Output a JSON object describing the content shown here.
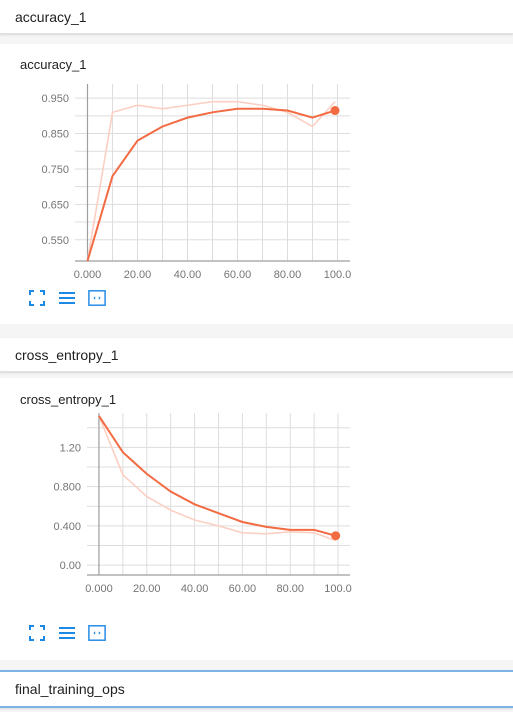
{
  "sections": [
    {
      "header": "accuracy_1"
    },
    {
      "header": "cross_entropy_1"
    },
    {
      "header": "final_training_ops"
    }
  ],
  "colors": {
    "line": "#f26b43",
    "line_light": "#fbd0c3",
    "grid": "#dddddd",
    "axis": "#9e9e9e",
    "icon": "#1e88e5"
  },
  "icons": [
    "fit-domain-icon",
    "toggle-log-scale-icon",
    "expand-chart-icon"
  ],
  "chart_data": [
    {
      "type": "line",
      "title": "accuracy_1",
      "xlabel": "",
      "ylabel": "",
      "xlim": [
        -5,
        105
      ],
      "ylim": [
        0.49,
        0.99
      ],
      "xticks": [
        "0.000",
        "20.00",
        "40.00",
        "60.00",
        "80.00",
        "100.0"
      ],
      "yticks": [
        "0.950",
        "0.850",
        "0.750",
        "0.650",
        "0.550"
      ],
      "series": [
        {
          "x": [
            0,
            10,
            20,
            30,
            40,
            50,
            60,
            70,
            80,
            90,
            99
          ],
          "y": [
            0.49,
            0.91,
            0.93,
            0.92,
            0.93,
            0.94,
            0.94,
            0.93,
            0.91,
            0.87,
            0.94
          ],
          "style": "raw"
        },
        {
          "x": [
            0,
            10,
            20,
            30,
            40,
            50,
            60,
            70,
            80,
            90,
            99
          ],
          "y": [
            0.49,
            0.73,
            0.83,
            0.87,
            0.895,
            0.91,
            0.92,
            0.92,
            0.915,
            0.895,
            0.915
          ],
          "style": "smoothed"
        }
      ]
    },
    {
      "type": "line",
      "title": "cross_entropy_1",
      "xlabel": "",
      "ylabel": "",
      "xlim": [
        -5,
        105
      ],
      "ylim": [
        -0.1,
        1.55
      ],
      "xticks": [
        "0.000",
        "20.00",
        "40.00",
        "60.00",
        "80.00",
        "100.0"
      ],
      "yticks": [
        "1.20",
        "0.800",
        "0.400",
        "0.00"
      ],
      "series": [
        {
          "x": [
            0,
            10,
            20,
            30,
            40,
            50,
            60,
            70,
            80,
            90,
            99
          ],
          "y": [
            1.52,
            0.92,
            0.7,
            0.56,
            0.46,
            0.4,
            0.33,
            0.32,
            0.34,
            0.33,
            0.25
          ],
          "style": "raw"
        },
        {
          "x": [
            0,
            10,
            20,
            30,
            40,
            50,
            60,
            70,
            80,
            90,
            99
          ],
          "y": [
            1.52,
            1.15,
            0.93,
            0.75,
            0.62,
            0.53,
            0.44,
            0.39,
            0.36,
            0.36,
            0.3
          ],
          "style": "smoothed"
        }
      ]
    }
  ]
}
